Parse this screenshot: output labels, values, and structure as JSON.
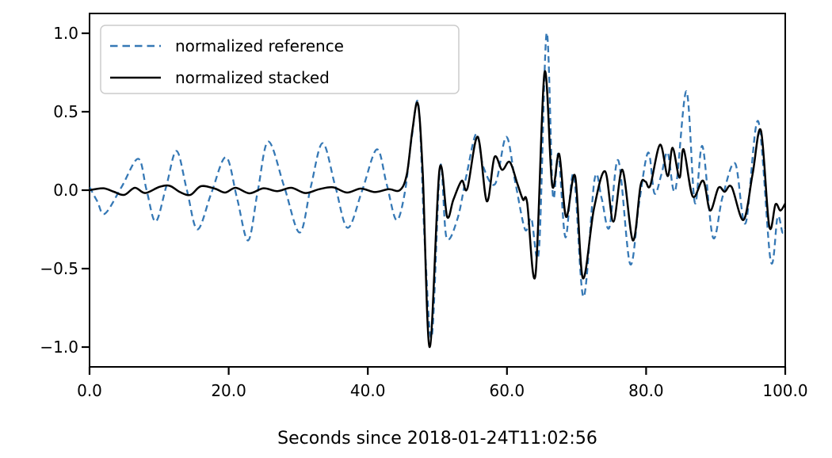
{
  "figure": {
    "background": "#ffffff",
    "axis_color": "#000000",
    "legend": {
      "entries": [
        {
          "label": "normalized reference"
        },
        {
          "label": "normalized stacked"
        }
      ]
    }
  },
  "chart_data": {
    "type": "line",
    "title": "",
    "xlabel": "Seconds since 2018-01-24T11:02:56",
    "ylabel": "",
    "xlim": [
      0,
      100
    ],
    "ylim": [
      -1.126,
      1.126
    ],
    "grid": false,
    "legend_position": "upper left",
    "x_tick_labels": [
      "0.0",
      "20.0",
      "40.0",
      "60.0",
      "80.0",
      "100.0"
    ],
    "x_tick_values": [
      0,
      20,
      40,
      60,
      80,
      100
    ],
    "y_tick_labels": [
      "1.0",
      "0.5",
      "0.0",
      "−0.5",
      "−1.0"
    ],
    "y_tick_values": [
      1.0,
      0.5,
      0.0,
      -0.5,
      -1.0
    ],
    "series": [
      {
        "name": "normalized reference",
        "color": "#3578b5",
        "style": "dashed",
        "points": [
          [
            0,
            0.02
          ],
          [
            1.1,
            -0.07
          ],
          [
            2.2,
            -0.15
          ],
          [
            4.6,
            0.02
          ],
          [
            7.0,
            0.2
          ],
          [
            8.2,
            0.0
          ],
          [
            9.5,
            -0.2
          ],
          [
            11.0,
            0.02
          ],
          [
            12.5,
            0.25
          ],
          [
            14.0,
            0.0
          ],
          [
            15.5,
            -0.25
          ],
          [
            17.5,
            -0.02
          ],
          [
            19.6,
            0.21
          ],
          [
            21.2,
            -0.05
          ],
          [
            22.8,
            -0.32
          ],
          [
            24.2,
            0.0
          ],
          [
            25.7,
            0.31
          ],
          [
            28.0,
            0.02
          ],
          [
            30.2,
            -0.27
          ],
          [
            31.8,
            0.02
          ],
          [
            33.5,
            0.3
          ],
          [
            35.3,
            0.03
          ],
          [
            37.1,
            -0.24
          ],
          [
            39.2,
            0.0
          ],
          [
            41.3,
            0.26
          ],
          [
            42.7,
            0.04
          ],
          [
            44.1,
            -0.19
          ],
          [
            45.3,
            -0.02
          ],
          [
            46.3,
            0.33
          ],
          [
            47.3,
            0.54
          ],
          [
            48.2,
            -0.35
          ],
          [
            49.2,
            -0.93
          ],
          [
            50.4,
            0.15
          ],
          [
            51.3,
            -0.3
          ],
          [
            52.9,
            -0.18
          ],
          [
            54.2,
            0.1
          ],
          [
            55.6,
            0.36
          ],
          [
            56.6,
            0.15
          ],
          [
            58.3,
            0.04
          ],
          [
            59.9,
            0.34
          ],
          [
            61.2,
            0.05
          ],
          [
            62.6,
            -0.25
          ],
          [
            63.5,
            -0.18
          ],
          [
            64.6,
            -0.38
          ],
          [
            65.7,
            1.0
          ],
          [
            66.6,
            -0.03
          ],
          [
            67.4,
            0.23
          ],
          [
            68.4,
            -0.3
          ],
          [
            69.6,
            0.1
          ],
          [
            71.0,
            -0.68
          ],
          [
            72.6,
            0.07
          ],
          [
            73.6,
            -0.05
          ],
          [
            74.7,
            -0.24
          ],
          [
            76.0,
            0.19
          ],
          [
            77.7,
            -0.47
          ],
          [
            79.0,
            -0.08
          ],
          [
            80.3,
            0.24
          ],
          [
            81.2,
            -0.02
          ],
          [
            82.2,
            0.1
          ],
          [
            83.1,
            0.24
          ],
          [
            84.2,
            0.0
          ],
          [
            85.8,
            0.63
          ],
          [
            87.0,
            -0.08
          ],
          [
            88.1,
            0.28
          ],
          [
            89.6,
            -0.3
          ],
          [
            91.0,
            -0.04
          ],
          [
            92.8,
            0.17
          ],
          [
            94.3,
            -0.21
          ],
          [
            96.1,
            0.44
          ],
          [
            97.9,
            -0.45
          ],
          [
            98.9,
            -0.17
          ],
          [
            99.6,
            -0.27
          ],
          [
            100,
            -0.25
          ]
        ]
      },
      {
        "name": "normalized stacked",
        "color": "#000000",
        "style": "solid",
        "points": [
          [
            0,
            0.0
          ],
          [
            2,
            0.012
          ],
          [
            3.5,
            -0.01
          ],
          [
            5,
            -0.03
          ],
          [
            6.5,
            0.015
          ],
          [
            8,
            -0.018
          ],
          [
            10,
            0.02
          ],
          [
            11.5,
            0.028
          ],
          [
            13,
            -0.012
          ],
          [
            14.5,
            -0.03
          ],
          [
            16,
            0.025
          ],
          [
            18,
            0.01
          ],
          [
            19.5,
            -0.015
          ],
          [
            21,
            0.015
          ],
          [
            23,
            -0.02
          ],
          [
            25,
            0.012
          ],
          [
            27,
            -0.006
          ],
          [
            29,
            0.015
          ],
          [
            31,
            -0.018
          ],
          [
            33,
            0.006
          ],
          [
            35,
            0.018
          ],
          [
            37,
            -0.015
          ],
          [
            39,
            0.01
          ],
          [
            41,
            -0.012
          ],
          [
            43,
            0.006
          ],
          [
            44.6,
            0.0
          ],
          [
            45.6,
            0.1
          ],
          [
            46.4,
            0.38
          ],
          [
            47.2,
            0.55
          ],
          [
            47.9,
            0.1
          ],
          [
            48.9,
            -1.0
          ],
          [
            50.3,
            0.13
          ],
          [
            51.4,
            -0.17
          ],
          [
            52.3,
            -0.06
          ],
          [
            53.5,
            0.06
          ],
          [
            54.3,
            0.01
          ],
          [
            55.8,
            0.34
          ],
          [
            57.1,
            -0.07
          ],
          [
            58.2,
            0.21
          ],
          [
            59.3,
            0.13
          ],
          [
            60.4,
            0.18
          ],
          [
            61.5,
            0.04
          ],
          [
            62.3,
            -0.06
          ],
          [
            62.9,
            -0.08
          ],
          [
            64.1,
            -0.54
          ],
          [
            65.4,
            0.75
          ],
          [
            66.5,
            0.03
          ],
          [
            67.5,
            0.23
          ],
          [
            68.5,
            -0.17
          ],
          [
            69.8,
            0.09
          ],
          [
            70.9,
            -0.56
          ],
          [
            72.5,
            -0.12
          ],
          [
            74.1,
            0.12
          ],
          [
            75.3,
            -0.2
          ],
          [
            76.6,
            0.13
          ],
          [
            78.1,
            -0.32
          ],
          [
            79.2,
            0.03
          ],
          [
            79.9,
            0.055
          ],
          [
            80.6,
            0.03
          ],
          [
            82.0,
            0.29
          ],
          [
            83.1,
            0.09
          ],
          [
            83.8,
            0.27
          ],
          [
            84.8,
            0.08
          ],
          [
            85.4,
            0.26
          ],
          [
            86.7,
            -0.04
          ],
          [
            88.2,
            0.06
          ],
          [
            89.2,
            -0.13
          ],
          [
            90.4,
            0.015
          ],
          [
            91.3,
            -0.01
          ],
          [
            92.3,
            0.02
          ],
          [
            94.0,
            -0.19
          ],
          [
            95.3,
            0.1
          ],
          [
            96.5,
            0.38
          ],
          [
            97.7,
            -0.23
          ],
          [
            98.6,
            -0.09
          ],
          [
            99.3,
            -0.13
          ],
          [
            100,
            -0.085
          ]
        ]
      }
    ]
  }
}
